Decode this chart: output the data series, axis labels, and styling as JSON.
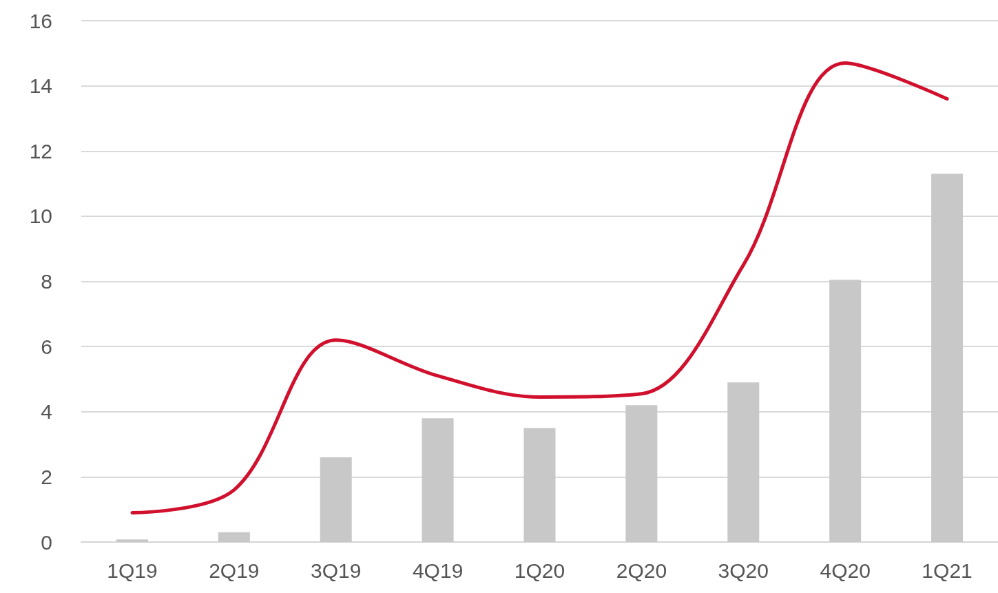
{
  "chart_data": {
    "type": "bar",
    "categories": [
      "1Q19",
      "2Q19",
      "3Q19",
      "4Q19",
      "1Q20",
      "2Q20",
      "3Q20",
      "4Q20",
      "1Q21"
    ],
    "series": [
      {
        "color": "#c8c8c8",
        "values": [
          0.08,
          0.3,
          2.6,
          3.8,
          3.5,
          4.2,
          4.9,
          8.05,
          11.3
        ]
      },
      {
        "type": "line",
        "color": "#d0102c",
        "values": [
          0.9,
          1.6,
          6.2,
          5.1,
          4.45,
          4.55,
          8.5,
          14.7,
          13.6
        ]
      }
    ],
    "ylim": [
      0,
      16
    ],
    "yticks": [
      0,
      2,
      4,
      6,
      8,
      10,
      12,
      14,
      16
    ],
    "grid": "y",
    "marker": "none",
    "line_style": "solid"
  }
}
